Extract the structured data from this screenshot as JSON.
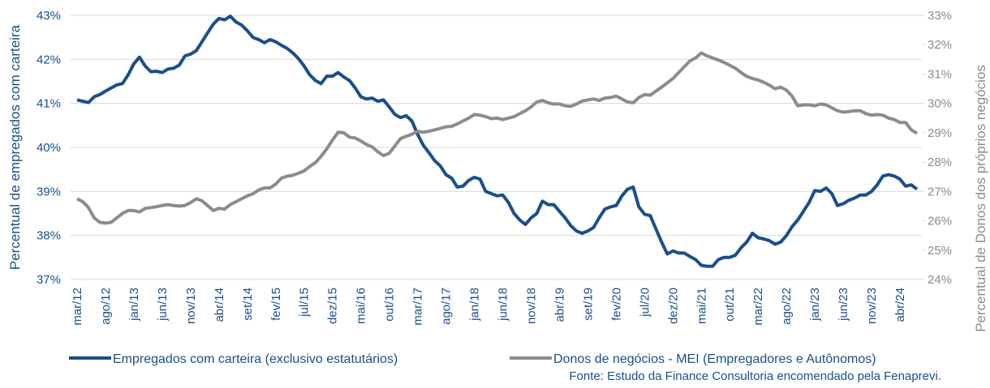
{
  "chart_data": {
    "type": "line",
    "y_label": "Percentual de empregados com carteira",
    "y2_label": "Percentual de Donos dos próprios negócios",
    "source": "Fonte: Estudo da Finance Consultoria encomendado pela Fenaprevi.",
    "grid": true,
    "legend": "bottom",
    "categories": [
      "mar/12",
      null,
      null,
      null,
      null,
      "ago/12",
      null,
      null,
      null,
      null,
      "jan/13",
      null,
      null,
      null,
      null,
      "jun/13",
      null,
      null,
      null,
      null,
      "nov/13",
      null,
      null,
      null,
      null,
      "abr/14",
      null,
      null,
      null,
      null,
      "set/14",
      null,
      null,
      null,
      null,
      "fev/15",
      null,
      null,
      null,
      null,
      "jul/15",
      null,
      null,
      null,
      null,
      "dez/15",
      null,
      null,
      null,
      null,
      "mai/16",
      null,
      null,
      null,
      null,
      "out/16",
      null,
      null,
      null,
      null,
      "mar/17",
      null,
      null,
      null,
      null,
      "ago/17",
      null,
      null,
      null,
      null,
      "jan/18",
      null,
      null,
      null,
      null,
      "jun/18",
      null,
      null,
      null,
      null,
      "nov/18",
      null,
      null,
      null,
      null,
      "abr/19",
      null,
      null,
      null,
      null,
      "set/19",
      null,
      null,
      null,
      null,
      "fev/20",
      null,
      null,
      null,
      null,
      "jul/20",
      null,
      null,
      null,
      null,
      "dez/20",
      null,
      null,
      null,
      null,
      "mai/21",
      null,
      null,
      null,
      null,
      "out/21",
      null,
      null,
      null,
      null,
      "mar/22",
      null,
      null,
      null,
      null,
      "ago/22",
      null,
      null,
      null,
      null,
      "jan/23",
      null,
      null,
      null,
      null,
      "jun/23",
      null,
      null,
      null,
      null,
      "nov/23",
      null,
      null,
      null,
      null,
      "abr/24",
      null,
      null,
      null
    ],
    "ylim": [
      37,
      43
    ],
    "yticks": [
      {
        "value": 37,
        "label": "37%"
      },
      {
        "value": 38,
        "label": "38%"
      },
      {
        "value": 39,
        "label": "39%"
      },
      {
        "value": 40,
        "label": "40%"
      },
      {
        "value": 41,
        "label": "41%"
      },
      {
        "value": 42,
        "label": "42%"
      },
      {
        "value": 43,
        "label": "43%"
      }
    ],
    "y2lim": [
      24,
      33
    ],
    "y2ticks": [
      {
        "value": 24,
        "label": "24%"
      },
      {
        "value": 25,
        "label": "25%"
      },
      {
        "value": 26,
        "label": "26%"
      },
      {
        "value": 27,
        "label": "27%"
      },
      {
        "value": 28,
        "label": "28%"
      },
      {
        "value": 29,
        "label": "29%"
      },
      {
        "value": 30,
        "label": "30%"
      },
      {
        "value": 31,
        "label": "31%"
      },
      {
        "value": 32,
        "label": "32%"
      },
      {
        "value": 33,
        "label": "33%"
      }
    ],
    "series": [
      {
        "name": "Empregados com carteira (exclusivo estatutários)",
        "color": "#1a4f8a",
        "axis": "y",
        "values": [
          41.08,
          41.05,
          41.02,
          41.15,
          41.2,
          41.28,
          41.35,
          41.42,
          41.45,
          41.65,
          41.9,
          42.05,
          41.85,
          41.72,
          41.73,
          41.7,
          41.78,
          41.8,
          41.87,
          42.08,
          42.12,
          42.2,
          42.4,
          42.6,
          42.8,
          42.93,
          42.9,
          42.98,
          42.85,
          42.78,
          42.65,
          42.5,
          42.45,
          42.38,
          42.45,
          42.4,
          42.32,
          42.25,
          42.15,
          42.02,
          41.85,
          41.65,
          41.52,
          41.45,
          41.62,
          41.62,
          41.7,
          41.6,
          41.52,
          41.35,
          41.15,
          41.1,
          41.12,
          41.05,
          41.08,
          40.92,
          40.75,
          40.68,
          40.72,
          40.6,
          40.3,
          40.05,
          39.88,
          39.7,
          39.58,
          39.38,
          39.3,
          39.1,
          39.12,
          39.25,
          39.32,
          39.28,
          39.0,
          38.95,
          38.9,
          38.92,
          38.75,
          38.5,
          38.35,
          38.25,
          38.4,
          38.5,
          38.78,
          38.7,
          38.7,
          38.55,
          38.4,
          38.22,
          38.1,
          38.05,
          38.1,
          38.18,
          38.4,
          38.6,
          38.65,
          38.68,
          38.9,
          39.05,
          39.1,
          38.65,
          38.48,
          38.45,
          38.15,
          37.85,
          37.58,
          37.65,
          37.6,
          37.6,
          37.52,
          37.45,
          37.32,
          37.3,
          37.3,
          37.45,
          37.5,
          37.5,
          37.55,
          37.72,
          37.85,
          38.05,
          37.95,
          37.92,
          37.88,
          37.8,
          37.85,
          38.0,
          38.2,
          38.35,
          38.55,
          38.75,
          39.02,
          39.0,
          39.08,
          38.95,
          38.68,
          38.72,
          38.8,
          38.85,
          38.92,
          38.92,
          39.0,
          39.15,
          39.35,
          39.38,
          39.35,
          39.28,
          39.12,
          39.15,
          39.05
        ]
      },
      {
        "name": "Donos de negócios - MEI (Empregadores e Autônomos)",
        "color": "#8c8c8c",
        "axis": "y2",
        "values": [
          26.75,
          26.65,
          26.45,
          26.1,
          25.95,
          25.92,
          25.95,
          26.1,
          26.25,
          26.35,
          26.35,
          26.3,
          26.42,
          26.45,
          26.48,
          26.52,
          26.55,
          26.52,
          26.5,
          26.52,
          26.62,
          26.75,
          26.68,
          26.52,
          26.35,
          26.42,
          26.4,
          26.55,
          26.65,
          26.75,
          26.85,
          26.92,
          27.05,
          27.12,
          27.12,
          27.25,
          27.45,
          27.52,
          27.55,
          27.62,
          27.7,
          27.85,
          27.98,
          28.2,
          28.45,
          28.75,
          29.02,
          29.0,
          28.85,
          28.82,
          28.72,
          28.6,
          28.52,
          28.35,
          28.22,
          28.3,
          28.55,
          28.8,
          28.88,
          28.95,
          29.05,
          29.02,
          29.05,
          29.1,
          29.15,
          29.2,
          29.22,
          29.3,
          29.4,
          29.5,
          29.62,
          29.6,
          29.55,
          29.48,
          29.5,
          29.45,
          29.5,
          29.55,
          29.65,
          29.75,
          29.88,
          30.05,
          30.1,
          30.02,
          29.98,
          29.98,
          29.92,
          29.9,
          29.98,
          30.08,
          30.12,
          30.15,
          30.1,
          30.18,
          30.2,
          30.25,
          30.15,
          30.05,
          30.02,
          30.2,
          30.3,
          30.28,
          30.42,
          30.55,
          30.7,
          30.85,
          31.05,
          31.25,
          31.45,
          31.55,
          31.72,
          31.62,
          31.55,
          31.48,
          31.4,
          31.3,
          31.2,
          31.05,
          30.92,
          30.85,
          30.8,
          30.72,
          30.62,
          30.5,
          30.55,
          30.45,
          30.25,
          29.92,
          29.95,
          29.95,
          29.92,
          29.98,
          29.95,
          29.85,
          29.75,
          29.7,
          29.72,
          29.75,
          29.75,
          29.65,
          29.6,
          29.62,
          29.6,
          29.5,
          29.45,
          29.35,
          29.35,
          29.1,
          28.98
        ]
      }
    ]
  }
}
